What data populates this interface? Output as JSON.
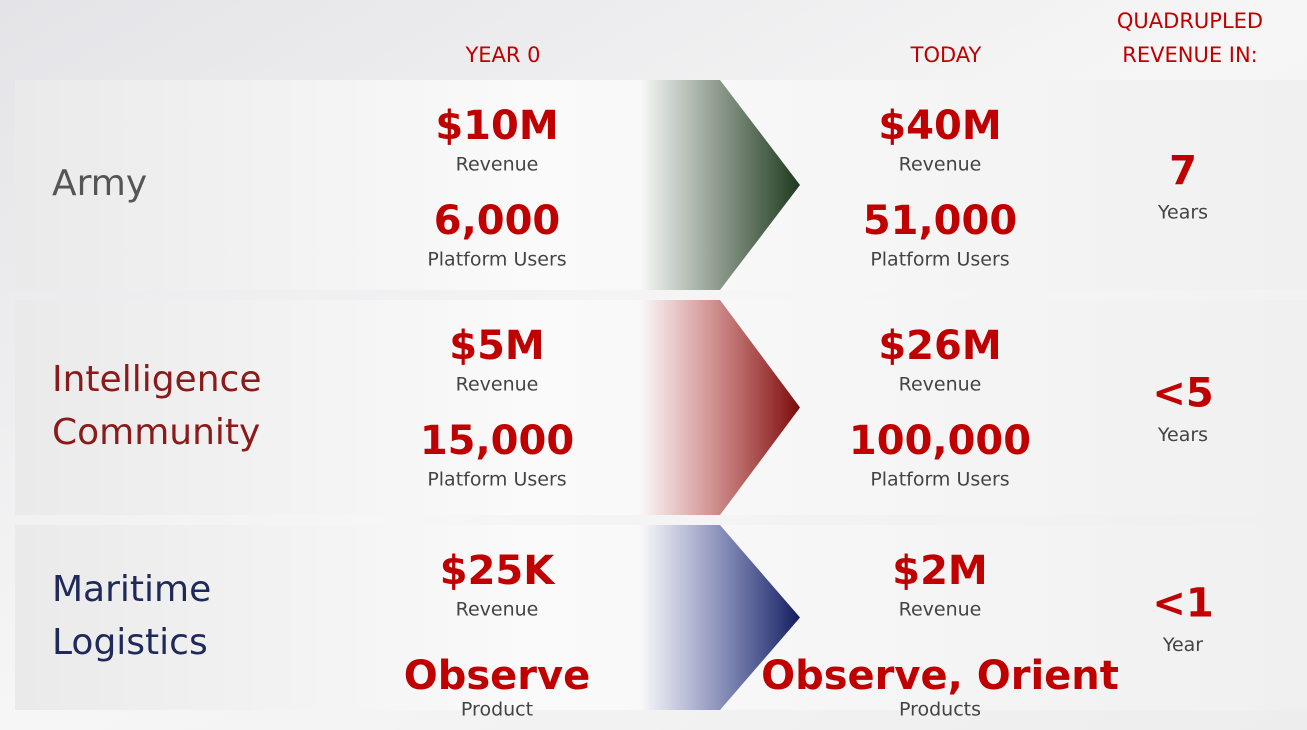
{
  "header": {
    "year0": "YEAR 0",
    "today": "TODAY",
    "growth": [
      "QUADRUPLED",
      "REVENUE IN:"
    ]
  },
  "rows": [
    {
      "name": [
        "Army"
      ],
      "year0": [
        {
          "value": "$10M",
          "label": "Revenue"
        },
        {
          "value": "6,000",
          "label": "Platform Users"
        }
      ],
      "today": [
        {
          "value": "$40M",
          "label": "Revenue"
        },
        {
          "value": "51,000",
          "label": "Platform Users"
        }
      ],
      "growth": {
        "value": "7",
        "label": "Years"
      }
    },
    {
      "name": [
        "Intelligence",
        "Community"
      ],
      "year0": [
        {
          "value": "$5M",
          "label": "Revenue"
        },
        {
          "value": "15,000",
          "label": "Platform Users"
        }
      ],
      "today": [
        {
          "value": "$26M",
          "label": "Revenue"
        },
        {
          "value": "100,000",
          "label": "Platform Users"
        }
      ],
      "growth": {
        "value": "<5",
        "label": "Years"
      }
    },
    {
      "name": [
        "Maritime",
        "Logistics"
      ],
      "year0": [
        {
          "value": "$25K",
          "label": "Revenue"
        },
        {
          "value": "Observe",
          "label": "Product"
        }
      ],
      "today": [
        {
          "value": "$2M",
          "label": "Revenue"
        },
        {
          "value": "Observe, Orient",
          "label": "Products"
        }
      ],
      "growth": {
        "value": "<1",
        "label": "Year"
      }
    }
  ]
}
